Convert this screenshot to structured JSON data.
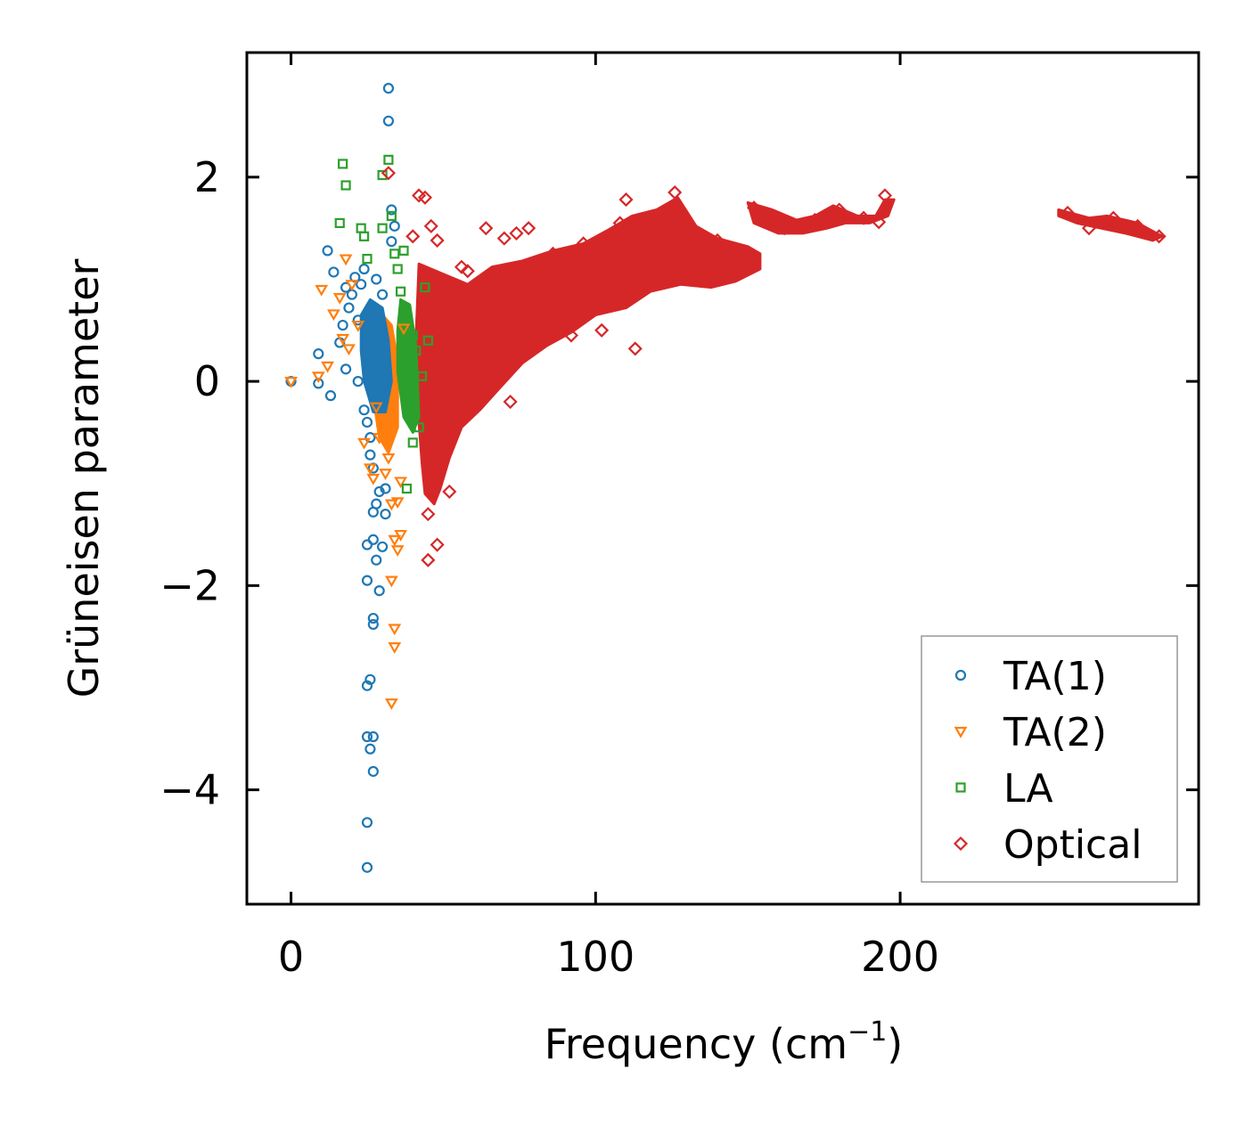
{
  "chart_data": {
    "type": "scatter",
    "title": "",
    "xlabel": "Frequency (cm",
    "xlabel_sup": "−1",
    "xlabel_close": ")",
    "ylabel": "Grüneisen parameter",
    "xlim": [
      -14.5,
      298
    ],
    "ylim": [
      -5.12,
      3.22
    ],
    "xticks": [
      0,
      100,
      200
    ],
    "xtick_labels": [
      "0",
      "100",
      "200"
    ],
    "yticks": [
      -4,
      -2,
      0,
      2
    ],
    "ytick_labels": [
      "−4",
      "−2",
      "0",
      "2"
    ],
    "grid": false,
    "legend_position": "lower-right",
    "series": [
      {
        "name": "TA(1)",
        "marker": "circle",
        "color": "#1f77b4",
        "points": [
          [
            0,
            0
          ],
          [
            9,
            0.27
          ],
          [
            9,
            -0.02
          ],
          [
            12,
            1.28
          ],
          [
            13,
            -0.14
          ],
          [
            14,
            1.07
          ],
          [
            16,
            0.38
          ],
          [
            17,
            0.55
          ],
          [
            18,
            0.92
          ],
          [
            18,
            0.12
          ],
          [
            19,
            0.72
          ],
          [
            20,
            0.85
          ],
          [
            21,
            1.02
          ],
          [
            22,
            0.6
          ],
          [
            22,
            0.0
          ],
          [
            23,
            0.95
          ],
          [
            24,
            -0.28
          ],
          [
            24,
            1.1
          ],
          [
            25,
            -0.4
          ],
          [
            25,
            -1.6
          ],
          [
            25,
            -1.95
          ],
          [
            25,
            -2.98
          ],
          [
            25,
            -3.48
          ],
          [
            25,
            -4.32
          ],
          [
            25,
            -4.76
          ],
          [
            26,
            -0.55
          ],
          [
            26,
            -0.72
          ],
          [
            26,
            -2.92
          ],
          [
            26,
            -3.6
          ],
          [
            27,
            -0.85
          ],
          [
            27,
            -1.28
          ],
          [
            27,
            -1.55
          ],
          [
            27,
            -2.32
          ],
          [
            27,
            -2.38
          ],
          [
            27,
            -3.48
          ],
          [
            27,
            -3.82
          ],
          [
            28,
            1.0
          ],
          [
            28,
            -1.2
          ],
          [
            28,
            -1.75
          ],
          [
            29,
            -1.08
          ],
          [
            29,
            -2.05
          ],
          [
            30,
            -1.62
          ],
          [
            30,
            0.85
          ],
          [
            31,
            -1.3
          ],
          [
            31,
            -1.05
          ],
          [
            32,
            2.87
          ],
          [
            32,
            2.55
          ],
          [
            33,
            1.68
          ],
          [
            33,
            1.37
          ],
          [
            34,
            1.52
          ]
        ]
      },
      {
        "name": "TA(2)",
        "marker": "triangle-down",
        "color": "#ff7f0e",
        "points": [
          [
            0,
            0
          ],
          [
            9,
            0.05
          ],
          [
            10,
            0.9
          ],
          [
            12,
            0.15
          ],
          [
            14,
            0.66
          ],
          [
            16,
            0.82
          ],
          [
            17,
            0.42
          ],
          [
            18,
            1.2
          ],
          [
            19,
            0.32
          ],
          [
            20,
            0.95
          ],
          [
            22,
            0.55
          ],
          [
            24,
            -0.6
          ],
          [
            26,
            -0.85
          ],
          [
            27,
            -0.95
          ],
          [
            28,
            -0.25
          ],
          [
            29,
            -0.55
          ],
          [
            30,
            -0.48
          ],
          [
            31,
            -0.9
          ],
          [
            32,
            -0.75
          ],
          [
            33,
            -3.15
          ],
          [
            33,
            -1.95
          ],
          [
            33,
            -1.2
          ],
          [
            34,
            -2.6
          ],
          [
            34,
            -2.42
          ],
          [
            34,
            -1.55
          ],
          [
            35,
            -1.65
          ],
          [
            35,
            -1.18
          ],
          [
            36,
            -1.5
          ],
          [
            36,
            -0.98
          ],
          [
            37,
            0.52
          ]
        ]
      },
      {
        "name": "LA",
        "marker": "square",
        "color": "#2ca02c",
        "points": [
          [
            16,
            1.55
          ],
          [
            17,
            2.13
          ],
          [
            18,
            1.92
          ],
          [
            23,
            1.5
          ],
          [
            24,
            1.42
          ],
          [
            25,
            1.2
          ],
          [
            30,
            1.5
          ],
          [
            30,
            2.02
          ],
          [
            32,
            2.17
          ],
          [
            33,
            1.62
          ],
          [
            34,
            1.25
          ],
          [
            35,
            1.1
          ],
          [
            36,
            0.88
          ],
          [
            37,
            1.28
          ],
          [
            38,
            -1.05
          ],
          [
            38,
            0.62
          ],
          [
            40,
            0.45
          ],
          [
            40,
            -0.6
          ],
          [
            41,
            0.3
          ],
          [
            42,
            -0.45
          ],
          [
            43,
            0.05
          ],
          [
            44,
            0.92
          ],
          [
            45,
            0.4
          ]
        ]
      },
      {
        "name": "Optical",
        "marker": "diamond",
        "color": "#d62728",
        "points": [
          [
            32,
            2.04
          ],
          [
            40,
            1.42
          ],
          [
            42,
            1.82
          ],
          [
            44,
            1.8
          ],
          [
            45,
            -1.75
          ],
          [
            45,
            -1.3
          ],
          [
            46,
            1.52
          ],
          [
            48,
            -1.6
          ],
          [
            48,
            1.38
          ],
          [
            52,
            -1.08
          ],
          [
            56,
            1.12
          ],
          [
            58,
            1.08
          ],
          [
            62,
            0.95
          ],
          [
            64,
            1.5
          ],
          [
            68,
            0.82
          ],
          [
            70,
            1.4
          ],
          [
            72,
            -0.2
          ],
          [
            74,
            1.45
          ],
          [
            78,
            1.5
          ],
          [
            80,
            0.5
          ],
          [
            86,
            1.25
          ],
          [
            92,
            0.45
          ],
          [
            96,
            1.35
          ],
          [
            99,
            1.3
          ],
          [
            102,
            0.5
          ],
          [
            108,
            1.55
          ],
          [
            110,
            1.78
          ],
          [
            113,
            0.32
          ],
          [
            120,
            1.6
          ],
          [
            126,
            1.85
          ],
          [
            135,
            1.18
          ],
          [
            140,
            1.38
          ],
          [
            152,
            1.7
          ],
          [
            162,
            1.5
          ],
          [
            172,
            1.58
          ],
          [
            180,
            1.68
          ],
          [
            188,
            1.6
          ],
          [
            193,
            1.56
          ],
          [
            195,
            1.82
          ],
          [
            255,
            1.65
          ],
          [
            262,
            1.5
          ],
          [
            270,
            1.6
          ],
          [
            278,
            1.52
          ],
          [
            285,
            1.42
          ]
        ]
      }
    ]
  }
}
